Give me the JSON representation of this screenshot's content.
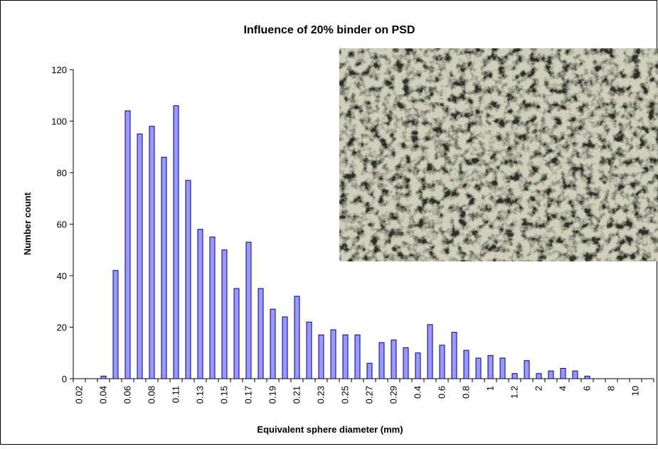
{
  "chart_data": {
    "type": "bar",
    "title": "Influence of 20% binder on PSD",
    "x_label": "Equivalent sphere diameter (mm)",
    "y_label": "Number count",
    "categories": [
      "0.02",
      null,
      "0.04",
      null,
      "0.06",
      null,
      "0.08",
      null,
      "0.11",
      null,
      "0.13",
      null,
      "0.15",
      null,
      "0.17",
      null,
      "0.19",
      null,
      "0.21",
      null,
      "0.23",
      null,
      "0.25",
      null,
      "0.27",
      null,
      "0.29",
      null,
      "0.4",
      null,
      "0.6",
      null,
      "0.8",
      null,
      "1",
      null,
      "1.2",
      null,
      "2",
      null,
      "4",
      null,
      "6",
      null,
      "8",
      null,
      "10",
      null
    ],
    "values": [
      0,
      0,
      1,
      42,
      104,
      95,
      98,
      86,
      106,
      77,
      58,
      55,
      50,
      35,
      53,
      35,
      27,
      24,
      32,
      22,
      17,
      19,
      17,
      17,
      6,
      14,
      15,
      12,
      10,
      21,
      13,
      18,
      11,
      8,
      9,
      8,
      2,
      7,
      2,
      3,
      4,
      3,
      1,
      0,
      0,
      0,
      0,
      0
    ],
    "color": "#9999ff",
    "ylim": [
      0,
      120
    ],
    "yticks": [
      0,
      20,
      40,
      60,
      80,
      100,
      120
    ]
  }
}
